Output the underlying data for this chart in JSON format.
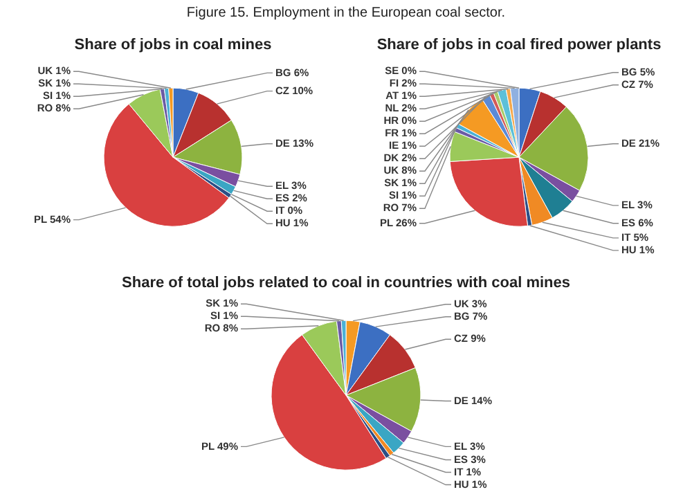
{
  "chart_data": [
    {
      "type": "pie",
      "title": "Share of jobs in coal mines",
      "annotations": [
        "Figure 15. Employment in the European coal sector."
      ],
      "categories": [
        "BG",
        "CZ",
        "DE",
        "EL",
        "ES",
        "IT",
        "HU",
        "PL",
        "RO",
        "SI",
        "SK",
        "UK"
      ],
      "values": [
        6,
        10,
        13,
        3,
        2,
        0,
        1,
        54,
        8,
        1,
        1,
        1
      ],
      "value_labels": [
        "6%",
        "10%",
        "13%",
        "3%",
        "2%",
        "0%",
        "1%",
        "54%",
        "8%",
        "1%",
        "1%",
        "1%"
      ],
      "colors": [
        "#3c6fc2",
        "#b8312f",
        "#8db340",
        "#7a4fa0",
        "#3aa6c4",
        "#f08a24",
        "#2d4f86",
        "#d94040",
        "#9bc95a",
        "#6b5ba5",
        "#4bb1d6",
        "#f59a23"
      ]
    },
    {
      "type": "pie",
      "title": "Share of jobs in coal fired power plants",
      "categories": [
        "BG",
        "CZ",
        "DE",
        "EL",
        "ES",
        "IT",
        "HU",
        "PL",
        "RO",
        "SI",
        "SK",
        "UK",
        "DK",
        "IE",
        "FR",
        "HR",
        "NL",
        "AT",
        "FI",
        "SE"
      ],
      "values": [
        5,
        7,
        21,
        3,
        6,
        5,
        1,
        26,
        7,
        1,
        1,
        8,
        2,
        1,
        1,
        0,
        2,
        1,
        2,
        0
      ],
      "value_labels": [
        "5%",
        "7%",
        "21%",
        "3%",
        "6%",
        "5%",
        "1%",
        "26%",
        "7%",
        "1%",
        "1%",
        "8%",
        "2%",
        "1%",
        "1%",
        "0%",
        "2%",
        "1%",
        "2%",
        "0%"
      ],
      "colors": [
        "#3c6fc2",
        "#b8312f",
        "#8db340",
        "#7a4fa0",
        "#1f7f93",
        "#f08a24",
        "#2d4f86",
        "#d94040",
        "#9bc95a",
        "#6b5ba5",
        "#4bb1d6",
        "#f59a23",
        "#5b8ad6",
        "#d45a58",
        "#a8cc6a",
        "#8e6fb8",
        "#5cc0d8",
        "#f5a94d",
        "#8fb0e0",
        "#e39a98"
      ]
    },
    {
      "type": "pie",
      "title": "Share of total jobs related to coal in countries with coal mines",
      "categories": [
        "UK",
        "BG",
        "CZ",
        "DE",
        "EL",
        "ES",
        "IT",
        "HU",
        "PL",
        "RO",
        "SI",
        "SK"
      ],
      "values": [
        3,
        7,
        9,
        14,
        3,
        3,
        1,
        1,
        49,
        8,
        1,
        1
      ],
      "value_labels": [
        "3%",
        "7%",
        "9%",
        "14%",
        "3%",
        "3%",
        "1%",
        "1%",
        "49%",
        "8%",
        "1%",
        "1%"
      ],
      "colors": [
        "#f59a23",
        "#3c6fc2",
        "#b8312f",
        "#8db340",
        "#7a4fa0",
        "#3aa6c4",
        "#f08a24",
        "#2d4f86",
        "#d94040",
        "#9bc95a",
        "#6b5ba5",
        "#4bb1d6"
      ]
    }
  ]
}
